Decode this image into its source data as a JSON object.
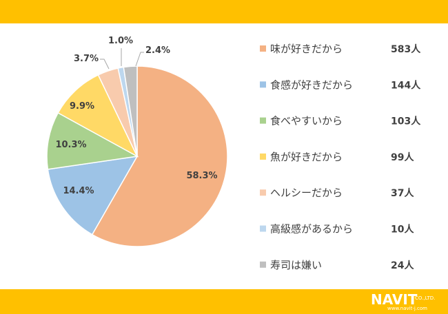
{
  "brand": {
    "logo_text": "NAVIT",
    "logo_suffix": "CO.,LTD.",
    "url": "www.navit-j.com",
    "band_color": "#FFC000"
  },
  "chart_data": {
    "type": "pie",
    "start": "top, clockwise",
    "slices": [
      {
        "label": "味が好きだから",
        "count": "583人",
        "value": 583,
        "percent_label": "58.3%",
        "color": "#F4B183"
      },
      {
        "label": "食感が好きだから",
        "count": "144人",
        "value": 144,
        "percent_label": "14.4%",
        "color": "#9DC3E6"
      },
      {
        "label": "食べやすいから",
        "count": "103人",
        "value": 103,
        "percent_label": "10.3%",
        "color": "#A9D18E"
      },
      {
        "label": "魚が好きだから",
        "count": "99人",
        "value": 99,
        "percent_label": "9.9%",
        "color": "#FFD966"
      },
      {
        "label": "ヘルシーだから",
        "count": "37人",
        "value": 37,
        "percent_label": "3.7%",
        "color": "#F8CBAD"
      },
      {
        "label": "高級感があるから",
        "count": "10人",
        "value": 10,
        "percent_label": "1.0%",
        "color": "#BDD7EE"
      },
      {
        "label": "寿司は嫌い",
        "count": "24人",
        "value": 24,
        "percent_label": "2.4%",
        "color": "#BFBFBF"
      }
    ],
    "legend_position": "right"
  }
}
